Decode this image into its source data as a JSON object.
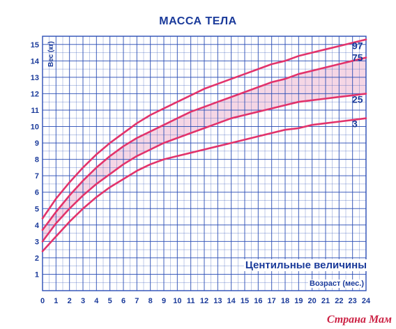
{
  "chart_data": {
    "type": "line",
    "title": "МАССА ТЕЛА",
    "ylabel": "Вес (кг)",
    "xlabel": "Возраст (мес.)",
    "legend_title": "Центильные величины",
    "x": [
      0,
      1,
      2,
      3,
      4,
      5,
      6,
      7,
      8,
      9,
      10,
      11,
      12,
      13,
      14,
      15,
      16,
      17,
      18,
      19,
      20,
      21,
      22,
      23,
      24
    ],
    "xlim": [
      0,
      24
    ],
    "ylim": [
      0,
      15.5
    ],
    "x_ticks": [
      "0",
      "1",
      "2",
      "3",
      "4",
      "5",
      "6",
      "7",
      "8",
      "9",
      "10",
      "11",
      "12",
      "13",
      "14",
      "15",
      "16",
      "17",
      "18",
      "19",
      "20",
      "21",
      "22",
      "23",
      "24"
    ],
    "y_ticks": [
      "1",
      "2",
      "3",
      "4",
      "5",
      "6",
      "7",
      "8",
      "9",
      "10",
      "11",
      "12",
      "13",
      "14",
      "15"
    ],
    "grid": true,
    "shaded_band": [
      "25",
      "75"
    ],
    "series": [
      {
        "name": "97",
        "values": [
          4.4,
          5.6,
          6.6,
          7.5,
          8.3,
          9.0,
          9.6,
          10.2,
          10.7,
          11.1,
          11.5,
          11.9,
          12.3,
          12.6,
          12.9,
          13.2,
          13.5,
          13.8,
          14.0,
          14.3,
          14.5,
          14.7,
          14.9,
          15.1,
          15.3
        ]
      },
      {
        "name": "75",
        "values": [
          3.7,
          4.8,
          5.8,
          6.7,
          7.5,
          8.2,
          8.8,
          9.3,
          9.7,
          10.1,
          10.5,
          10.9,
          11.2,
          11.5,
          11.8,
          12.1,
          12.4,
          12.7,
          12.9,
          13.2,
          13.4,
          13.6,
          13.8,
          14.0,
          14.2
        ]
      },
      {
        "name": "25",
        "values": [
          3.0,
          4.1,
          5.0,
          5.8,
          6.5,
          7.1,
          7.7,
          8.2,
          8.6,
          9.0,
          9.3,
          9.6,
          9.9,
          10.2,
          10.5,
          10.7,
          10.9,
          11.1,
          11.3,
          11.5,
          11.6,
          11.7,
          11.8,
          11.9,
          12.0
        ]
      },
      {
        "name": "3",
        "values": [
          2.4,
          3.3,
          4.2,
          5.0,
          5.7,
          6.3,
          6.8,
          7.3,
          7.7,
          8.0,
          8.2,
          8.4,
          8.6,
          8.8,
          9.0,
          9.2,
          9.4,
          9.6,
          9.8,
          9.9,
          10.1,
          10.2,
          10.3,
          10.4,
          10.5
        ]
      }
    ]
  },
  "watermark": "Страна Мам",
  "colors": {
    "grid": "#2a4db5",
    "curve": "#e2336b",
    "band": "#f2c8dc",
    "text": "#1a3a9a"
  }
}
